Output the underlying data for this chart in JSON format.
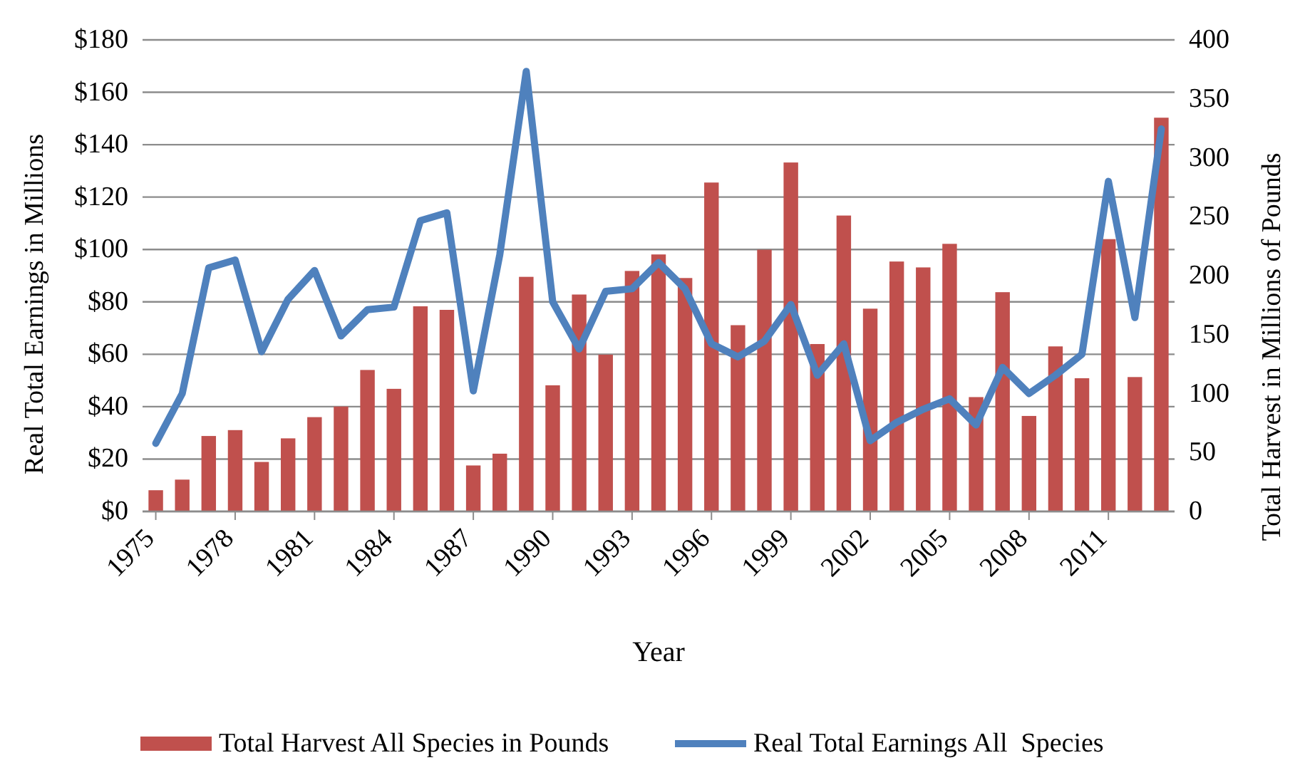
{
  "chart_data": {
    "type": "bar",
    "xlabel": "Year",
    "ylabel": "Real Total Earnings in Millions",
    "y2label": "Total Harvest in Millions of Pounds",
    "x": [
      1975,
      1976,
      1977,
      1978,
      1979,
      1980,
      1981,
      1982,
      1983,
      1984,
      1985,
      1986,
      1987,
      1988,
      1989,
      1990,
      1991,
      1992,
      1993,
      1994,
      1995,
      1996,
      1997,
      1998,
      1999,
      2000,
      2001,
      2002,
      2003,
      2004,
      2005,
      2006,
      2007,
      2008,
      2009,
      2010,
      2011,
      2012,
      2013
    ],
    "xlim": [
      1974.5,
      2013.5
    ],
    "xticks": [
      1975,
      1978,
      1981,
      1984,
      1987,
      1990,
      1993,
      1996,
      1999,
      2002,
      2005,
      2008,
      2011
    ],
    "series": [
      {
        "name": "Total Harvest All Species in Pounds",
        "axis": "y2",
        "color": "#c0504d",
        "values": [
          18,
          27,
          64,
          69,
          42,
          62,
          80,
          89,
          120,
          104,
          174,
          171,
          39,
          49,
          199,
          107,
          184,
          133,
          204,
          218,
          198,
          279,
          158,
          222,
          296,
          142,
          251,
          172,
          212,
          207,
          227,
          97,
          186,
          81,
          140,
          113,
          231,
          114,
          334
        ]
      },
      {
        "name": "Real Total Earnings All  Species",
        "type": "line",
        "color": "#4f81bd",
        "values": [
          26,
          45,
          93,
          96,
          61,
          81,
          92,
          67,
          77,
          78,
          111,
          114,
          46,
          98,
          168,
          80,
          62,
          84,
          85,
          95,
          85,
          64,
          59,
          65,
          79,
          52,
          64,
          27,
          34,
          39,
          43,
          33,
          55,
          45,
          52,
          60,
          126,
          74,
          146
        ]
      }
    ],
    "ylim": [
      0,
      180
    ],
    "yticks": [
      {
        "value": 0,
        "label": "$0"
      },
      {
        "value": 20,
        "label": "$20"
      },
      {
        "value": 40,
        "label": "$40"
      },
      {
        "value": 60,
        "label": "$60"
      },
      {
        "value": 80,
        "label": "$80"
      },
      {
        "value": 100,
        "label": "$100"
      },
      {
        "value": 120,
        "label": "$120"
      },
      {
        "value": 140,
        "label": "$140"
      },
      {
        "value": 160,
        "label": "$160"
      },
      {
        "value": 180,
        "label": "$180"
      }
    ],
    "y2lim": [
      0,
      400
    ],
    "y2ticks": [
      0,
      50,
      100,
      150,
      200,
      250,
      300,
      350,
      400
    ],
    "grid": "y",
    "legend": "bottom",
    "marker": "none",
    "line_style": "solid"
  }
}
